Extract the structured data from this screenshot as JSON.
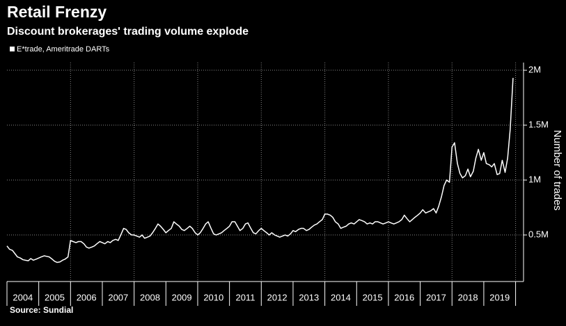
{
  "chart_data": {
    "type": "line",
    "title": "Retail Frenzy",
    "subtitle": "Discount brokerages' trading volume explode",
    "y_axis_label": "Number of trades",
    "source": "Source: Sundial",
    "year_labels": [
      "2004",
      "2005",
      "2006",
      "2007",
      "2008",
      "2009",
      "2010",
      "2011",
      "2012",
      "2013",
      "2014",
      "2015",
      "2016",
      "2017",
      "2018",
      "2019"
    ],
    "xlim": [
      2004,
      2020.25
    ],
    "xticks": [
      2004,
      2005,
      2006,
      2007,
      2008,
      2009,
      2010,
      2011,
      2012,
      2013,
      2014,
      2015,
      2016,
      2017,
      2018,
      2019,
      2020
    ],
    "xgrid": [
      2006,
      2008,
      2010,
      2012,
      2014,
      2016,
      2018,
      2020
    ],
    "ylim": [
      76000,
      2070000
    ],
    "yticks": [
      {
        "value": 500000,
        "label": "0.5M"
      },
      {
        "value": 1000000,
        "label": "1M"
      },
      {
        "value": 1500000,
        "label": "1.5M"
      },
      {
        "value": 2000000,
        "label": "2M"
      }
    ],
    "grid": true,
    "x": [
      2004,
      2004.08,
      2004.17,
      2004.25,
      2004.33,
      2004.42,
      2004.5,
      2004.58,
      2004.67,
      2004.75,
      2004.83,
      2004.92,
      2005,
      2005.08,
      2005.17,
      2005.25,
      2005.33,
      2005.42,
      2005.5,
      2005.58,
      2005.67,
      2005.75,
      2005.83,
      2005.92,
      2006,
      2006.08,
      2006.17,
      2006.25,
      2006.33,
      2006.42,
      2006.5,
      2006.58,
      2006.67,
      2006.75,
      2006.83,
      2006.92,
      2007,
      2007.08,
      2007.17,
      2007.25,
      2007.33,
      2007.42,
      2007.5,
      2007.58,
      2007.67,
      2007.75,
      2007.83,
      2007.92,
      2008,
      2008.08,
      2008.17,
      2008.25,
      2008.33,
      2008.42,
      2008.5,
      2008.58,
      2008.67,
      2008.75,
      2008.83,
      2008.92,
      2009,
      2009.08,
      2009.17,
      2009.25,
      2009.33,
      2009.42,
      2009.5,
      2009.58,
      2009.67,
      2009.75,
      2009.83,
      2009.92,
      2010,
      2010.08,
      2010.17,
      2010.25,
      2010.33,
      2010.42,
      2010.5,
      2010.58,
      2010.67,
      2010.75,
      2010.83,
      2010.92,
      2011,
      2011.08,
      2011.17,
      2011.25,
      2011.33,
      2011.42,
      2011.5,
      2011.58,
      2011.67,
      2011.75,
      2011.83,
      2011.92,
      2012,
      2012.08,
      2012.17,
      2012.25,
      2012.33,
      2012.42,
      2012.5,
      2012.58,
      2012.67,
      2012.75,
      2012.83,
      2012.92,
      2013,
      2013.08,
      2013.17,
      2013.25,
      2013.33,
      2013.42,
      2013.5,
      2013.58,
      2013.67,
      2013.75,
      2013.83,
      2013.92,
      2014,
      2014.08,
      2014.17,
      2014.25,
      2014.33,
      2014.42,
      2014.5,
      2014.58,
      2014.67,
      2014.75,
      2014.83,
      2014.92,
      2015,
      2015.08,
      2015.17,
      2015.25,
      2015.33,
      2015.42,
      2015.5,
      2015.58,
      2015.67,
      2015.75,
      2015.83,
      2015.92,
      2016,
      2016.08,
      2016.17,
      2016.25,
      2016.33,
      2016.42,
      2016.5,
      2016.58,
      2016.67,
      2016.75,
      2016.83,
      2016.92,
      2017,
      2017.08,
      2017.17,
      2017.25,
      2017.33,
      2017.42,
      2017.5,
      2017.58,
      2017.67,
      2017.75,
      2017.83,
      2017.92,
      2018,
      2018.08,
      2018.17,
      2018.25,
      2018.33,
      2018.42,
      2018.5,
      2018.58,
      2018.67,
      2018.75,
      2018.83,
      2018.92,
      2019,
      2019.08,
      2019.17,
      2019.25,
      2019.33,
      2019.42,
      2019.5,
      2019.58,
      2019.67,
      2019.75,
      2019.83,
      2019.92
    ],
    "series": [
      {
        "name": "E*trade, Ameritrade DARTs",
        "color": "#ffffff",
        "values": [
          400000,
          370000,
          360000,
          330000,
          300000,
          290000,
          275000,
          270000,
          265000,
          285000,
          270000,
          280000,
          290000,
          300000,
          310000,
          305000,
          300000,
          280000,
          260000,
          250000,
          255000,
          270000,
          280000,
          300000,
          450000,
          440000,
          430000,
          440000,
          440000,
          420000,
          390000,
          380000,
          390000,
          400000,
          420000,
          440000,
          430000,
          420000,
          440000,
          430000,
          450000,
          460000,
          450000,
          500000,
          560000,
          550000,
          520000,
          500000,
          500000,
          490000,
          480000,
          500000,
          470000,
          480000,
          490000,
          520000,
          560000,
          600000,
          580000,
          550000,
          520000,
          540000,
          560000,
          620000,
          600000,
          580000,
          550000,
          540000,
          560000,
          580000,
          560000,
          520000,
          500000,
          520000,
          560000,
          600000,
          620000,
          560000,
          510000,
          500000,
          510000,
          520000,
          540000,
          560000,
          580000,
          620000,
          620000,
          580000,
          540000,
          560000,
          600000,
          610000,
          560000,
          520000,
          510000,
          540000,
          560000,
          540000,
          520000,
          500000,
          520000,
          500000,
          490000,
          480000,
          490000,
          500000,
          490000,
          510000,
          540000,
          530000,
          550000,
          560000,
          560000,
          540000,
          550000,
          570000,
          590000,
          600000,
          620000,
          640000,
          690000,
          690000,
          680000,
          660000,
          620000,
          600000,
          560000,
          570000,
          580000,
          600000,
          610000,
          600000,
          620000,
          640000,
          630000,
          620000,
          600000,
          610000,
          600000,
          620000,
          620000,
          610000,
          600000,
          610000,
          620000,
          610000,
          600000,
          610000,
          620000,
          640000,
          680000,
          650000,
          620000,
          640000,
          660000,
          680000,
          700000,
          730000,
          700000,
          710000,
          720000,
          740000,
          700000,
          760000,
          850000,
          950000,
          1000000,
          980000,
          1300000,
          1340000,
          1150000,
          1060000,
          1020000,
          1040000,
          1100000,
          1030000,
          1080000,
          1200000,
          1280000,
          1180000,
          1250000,
          1150000,
          1140000,
          1120000,
          1150000,
          1050000,
          1060000,
          1180000,
          1070000,
          1200000,
          1460000,
          1930000
        ]
      }
    ]
  }
}
